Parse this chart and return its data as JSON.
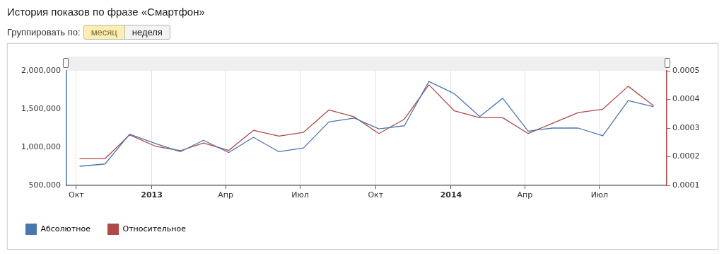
{
  "chart_data": {
    "type": "line",
    "title": "История показов по фразе «Смартфон»",
    "annotations": [
      "Группировать по:",
      "месяц",
      "неделя"
    ],
    "x": [
      "2012-10-05",
      "2012-11-05",
      "2012-12-05",
      "2013-01-05",
      "2013-02-05",
      "2013-03-05",
      "2013-04-05",
      "2013-05-05",
      "2013-06-05",
      "2013-07-05",
      "2013-08-05",
      "2013-09-05",
      "2013-10-05",
      "2013-11-05",
      "2013-12-05",
      "2014-01-05",
      "2014-02-05",
      "2014-03-05",
      "2014-04-05",
      "2014-05-05",
      "2014-06-05",
      "2014-07-05",
      "2014-08-05",
      "2014-09-05"
    ],
    "series": [
      {
        "name": "Абсолютное",
        "color": "#4a76ad",
        "values": [
          750000,
          780000,
          1170000,
          1050000,
          940000,
          1090000,
          930000,
          1130000,
          940000,
          990000,
          1330000,
          1380000,
          1240000,
          1280000,
          1860000,
          1700000,
          1400000,
          1640000,
          1210000,
          1250000,
          1250000,
          1150000,
          1610000,
          1530000
        ]
      },
      {
        "name": "Относительное",
        "color": "#b04a48",
        "axis": "y2",
        "values": [
          0.000193,
          0.000193,
          0.000276,
          0.000237,
          0.000221,
          0.000248,
          0.000222,
          0.000292,
          0.000272,
          0.000285,
          0.000363,
          0.000339,
          0.000281,
          0.000331,
          0.000451,
          0.00036,
          0.000336,
          0.000336,
          0.000281,
          0.000317,
          0.000354,
          0.000366,
          0.000446,
          0.000378
        ]
      }
    ],
    "xlim": [
      "2012-09-19",
      "2014-09-21"
    ],
    "xticks": [
      {
        "value": "2012-10",
        "label": "Окт"
      },
      {
        "value": "2013-01",
        "label": "2013"
      },
      {
        "value": "2013-04",
        "label": "Апр"
      },
      {
        "value": "2013-07",
        "label": "Июл"
      },
      {
        "value": "2013-10",
        "label": "Окт"
      },
      {
        "value": "2014-01",
        "label": "2014"
      },
      {
        "value": "2014-04",
        "label": "Апр"
      },
      {
        "value": "2014-07",
        "label": "Июл"
      }
    ],
    "ylim": [
      500000,
      2000000
    ],
    "yticks": [
      {
        "value": 500000,
        "label": "500,000"
      },
      {
        "value": 1000000,
        "label": "1,000,000"
      },
      {
        "value": 1500000,
        "label": "1,500,000"
      },
      {
        "value": 2000000,
        "label": "2,000,000"
      }
    ],
    "y2lim": [
      0.0001,
      0.0005
    ],
    "y2ticks": [
      0.0001,
      0.0002,
      0.0003,
      0.0004,
      0.0005
    ],
    "grid": "x",
    "legend": "bottom",
    "marker": "none",
    "line_style": "solid"
  }
}
